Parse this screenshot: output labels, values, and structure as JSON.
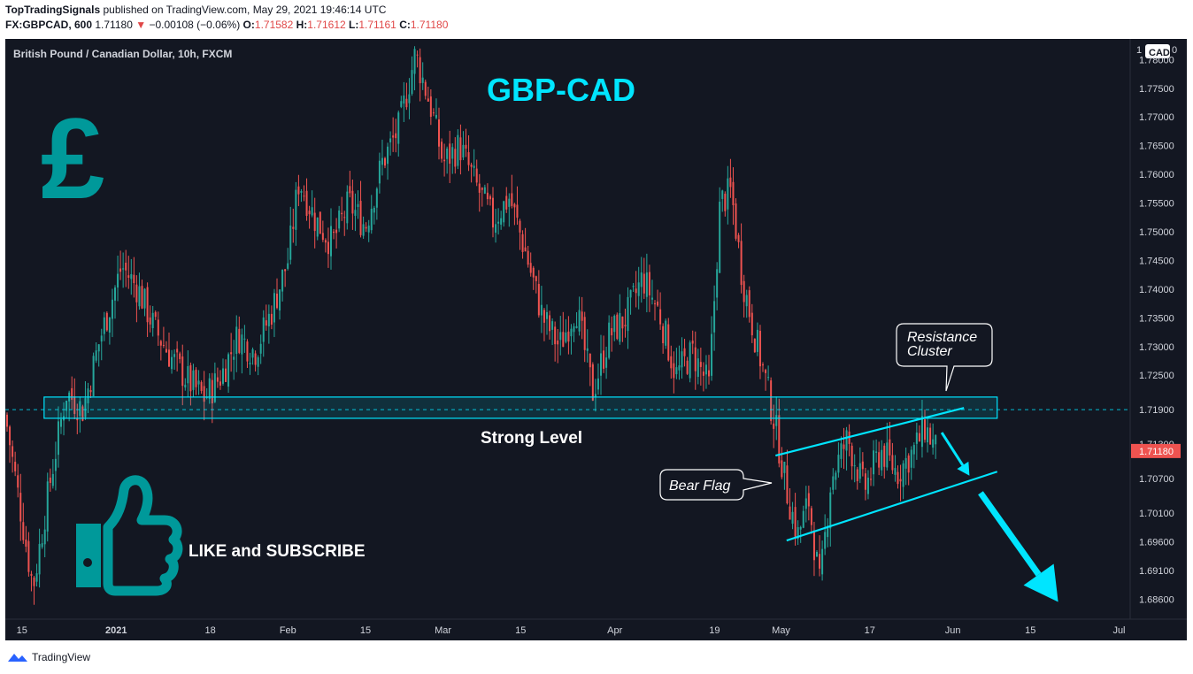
{
  "header": {
    "author": "TopTradingSignals",
    "published_text": "published on TradingView.com, May 29, 2021 19:46:14 UTC",
    "symbol": "FX:GBPCAD, 600",
    "last": "1.71180",
    "arrow": "▼",
    "change": "−0.00108 (−0.06%)",
    "o_label": "O:",
    "o_value": "1.71582",
    "h_label": "H:",
    "h_value": "1.71612",
    "l_label": "L:",
    "l_value": "1.71161",
    "c_label": "C:",
    "c_value": "1.71180"
  },
  "footer": {
    "brand": "TradingView"
  },
  "chart_data": {
    "type": "candlestick",
    "instrument_label": "British Pound / Canadian Dollar, 10h, FXCM",
    "title": "GBP-CAD",
    "currency_badge": "CAD",
    "price_axis_top_label": "1",
    "price_axis_top_zero": "0",
    "y_ticks": [
      "1.78000",
      "1.77500",
      "1.77000",
      "1.76500",
      "1.76000",
      "1.75500",
      "1.75000",
      "1.74500",
      "1.74000",
      "1.73500",
      "1.73000",
      "1.72500",
      "1.71900",
      "1.71300",
      "1.70700",
      "1.70100",
      "1.69600",
      "1.69100",
      "1.68600"
    ],
    "y_tick_values": [
      1.78,
      1.775,
      1.77,
      1.765,
      1.76,
      1.755,
      1.75,
      1.745,
      1.74,
      1.735,
      1.73,
      1.725,
      1.719,
      1.713,
      1.707,
      1.701,
      1.696,
      1.691,
      1.686
    ],
    "ylim": [
      1.6825,
      1.7836
    ],
    "x_ticks": [
      "15",
      "2021",
      "18",
      "Feb",
      "15",
      "Mar",
      "15",
      "Apr",
      "19",
      "May",
      "17",
      "Jun",
      "15",
      "Jul"
    ],
    "x_tick_dates": [
      "2020-12-15",
      "2021-01-01",
      "2021-01-18",
      "2021-02-01",
      "2021-02-15",
      "2021-03-01",
      "2021-03-15",
      "2021-04-01",
      "2021-04-19",
      "2021-05-01",
      "2021-05-17",
      "2021-06-01",
      "2021-06-15",
      "2021-07-01"
    ],
    "xlim": [
      "2020-12-12",
      "2021-07-03"
    ],
    "last_price_label": "1.71180",
    "last_price": 1.7118,
    "dashed_level": 1.719,
    "close_path": [
      [
        "2020-12-12",
        1.718
      ],
      [
        "2020-12-15",
        1.7
      ],
      [
        "2020-12-17",
        1.688
      ],
      [
        "2020-12-20",
        1.706
      ],
      [
        "2020-12-23",
        1.722
      ],
      [
        "2020-12-26",
        1.719
      ],
      [
        "2020-12-29",
        1.731
      ],
      [
        "2021-01-02",
        1.744
      ],
      [
        "2021-01-05",
        1.74
      ],
      [
        "2021-01-08",
        1.733
      ],
      [
        "2021-01-11",
        1.728
      ],
      [
        "2021-01-14",
        1.724
      ],
      [
        "2021-01-17",
        1.721
      ],
      [
        "2021-01-20",
        1.725
      ],
      [
        "2021-01-23",
        1.732
      ],
      [
        "2021-01-26",
        1.729
      ],
      [
        "2021-01-29",
        1.736
      ],
      [
        "2021-02-01",
        1.745
      ],
      [
        "2021-02-03",
        1.759
      ],
      [
        "2021-02-06",
        1.752
      ],
      [
        "2021-02-09",
        1.748
      ],
      [
        "2021-02-12",
        1.755
      ],
      [
        "2021-02-15",
        1.751
      ],
      [
        "2021-02-18",
        1.762
      ],
      [
        "2021-02-21",
        1.768
      ],
      [
        "2021-02-24",
        1.781
      ],
      [
        "2021-02-27",
        1.771
      ],
      [
        "2021-03-01",
        1.762
      ],
      [
        "2021-03-04",
        1.765
      ],
      [
        "2021-03-07",
        1.758
      ],
      [
        "2021-03-10",
        1.752
      ],
      [
        "2021-03-13",
        1.756
      ],
      [
        "2021-03-16",
        1.746
      ],
      [
        "2021-03-19",
        1.735
      ],
      [
        "2021-03-22",
        1.73
      ],
      [
        "2021-03-25",
        1.737
      ],
      [
        "2021-03-28",
        1.722
      ],
      [
        "2021-03-31",
        1.732
      ],
      [
        "2021-04-03",
        1.735
      ],
      [
        "2021-04-06",
        1.742
      ],
      [
        "2021-04-09",
        1.736
      ],
      [
        "2021-04-12",
        1.725
      ],
      [
        "2021-04-15",
        1.729
      ],
      [
        "2021-04-18",
        1.723
      ],
      [
        "2021-04-20",
        1.755
      ],
      [
        "2021-04-22",
        1.757
      ],
      [
        "2021-04-24",
        1.742
      ],
      [
        "2021-04-26",
        1.733
      ],
      [
        "2021-04-28",
        1.725
      ],
      [
        "2021-04-30",
        1.716
      ],
      [
        "2021-05-02",
        1.705
      ],
      [
        "2021-05-04",
        1.697
      ],
      [
        "2021-05-06",
        1.703
      ],
      [
        "2021-05-08",
        1.688
      ],
      [
        "2021-05-10",
        1.707
      ],
      [
        "2021-05-13",
        1.714
      ],
      [
        "2021-05-16",
        1.705
      ],
      [
        "2021-05-19",
        1.712
      ],
      [
        "2021-05-22",
        1.708
      ],
      [
        "2021-05-25",
        1.712
      ],
      [
        "2021-05-27",
        1.716
      ],
      [
        "2021-05-29",
        1.7118
      ]
    ],
    "annotations": {
      "strong_level_label": "Strong Level",
      "strong_level_zone": [
        1.7175,
        1.7212
      ],
      "resistance_label_line1": "Resistance",
      "resistance_label_line2": "Cluster",
      "bear_flag_label": "Bear Flag",
      "like_label": "LIKE and SUBSCRIBE",
      "pound_symbol": "£",
      "flag_upper": [
        [
          "2021-04-30",
          1.711
        ],
        [
          "2021-06-03",
          1.7193
        ]
      ],
      "flag_lower": [
        [
          "2021-05-02",
          1.6962
        ],
        [
          "2021-06-09",
          1.7082
        ]
      ],
      "arrow1": [
        [
          "2021-05-30",
          1.715
        ],
        [
          "2021-06-04",
          1.7075
        ]
      ],
      "arrow2": [
        [
          "2021-06-06",
          1.7045
        ],
        [
          "2021-06-20",
          1.6855
        ]
      ]
    },
    "colors": {
      "up": "#26a69a",
      "down": "#ef5350",
      "accent": "#00e5ff",
      "teal": "#00999a",
      "background": "#131722"
    },
    "grid": false
  }
}
